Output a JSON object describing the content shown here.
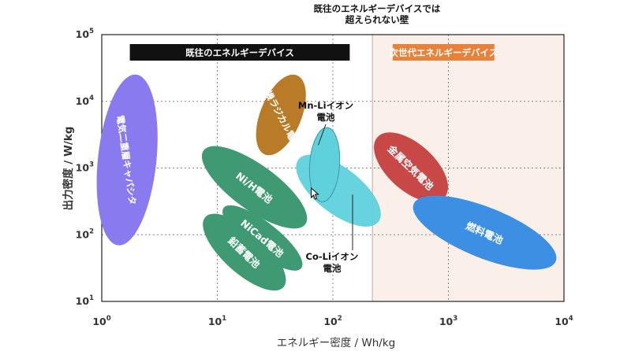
{
  "chart_data": {
    "type": "scatter",
    "title_line1": "既往のエネルギーデバイスでは",
    "title_line2": "超えられない壁",
    "xlabel": "エネルギー密度 / Wh/kg",
    "ylabel": "出力密度 / W/kg",
    "xscale": "log",
    "yscale": "log",
    "xlim": [
      1,
      10000
    ],
    "ylim": [
      10,
      100000
    ],
    "x_ticks": [
      {
        "base": "10",
        "exp": "0"
      },
      {
        "base": "10",
        "exp": "1"
      },
      {
        "base": "10",
        "exp": "2"
      },
      {
        "base": "10",
        "exp": "3"
      },
      {
        "base": "10",
        "exp": "4"
      }
    ],
    "y_ticks": [
      {
        "base": "10",
        "exp": "1"
      },
      {
        "base": "10",
        "exp": "2"
      },
      {
        "base": "10",
        "exp": "3"
      },
      {
        "base": "10",
        "exp": "4"
      },
      {
        "base": "10",
        "exp": "5"
      }
    ],
    "grid": true,
    "regions": [
      {
        "label": "既往のエネルギーデバイス",
        "x_from": 1,
        "x_to": 220,
        "color": "#111111",
        "text_color": "#ffffff",
        "shaded": false
      },
      {
        "label": "次世代エネルギーデバイス",
        "x_from": 220,
        "x_to": 10000,
        "color": "#e8823a",
        "text_color": "#ffffff",
        "shaded": true,
        "shade_color": "#fbefe9"
      }
    ],
    "series": [
      {
        "name": "電気二重層キャパシタ",
        "x_range": [
          1.1,
          2.5
        ],
        "y_range": [
          70,
          25000
        ],
        "color": "#8a7af0",
        "text_color": "#ffffff",
        "vertical_text": true
      },
      {
        "name": "有機ラジカル電池",
        "x_range": [
          23,
          55
        ],
        "y_range": [
          1700,
          23000
        ],
        "color": "#b97b27",
        "text_color": "#ffffff",
        "vertical_text": true
      },
      {
        "name": "Ni/H電池",
        "x_range": [
          8,
          55
        ],
        "y_range": [
          120,
          2200
        ],
        "color": "#3f9a74",
        "text_color": "#ffffff",
        "vertical_text": false
      },
      {
        "name": "NiCad電池",
        "x_range": [
          11,
          55
        ],
        "y_range": [
          32,
          250
        ],
        "color": "#3f9a74",
        "text_color": "#ffffff",
        "vertical_text": false
      },
      {
        "name": "鉛蓄電池",
        "x_range": [
          7,
          42
        ],
        "y_range": [
          20,
          150
        ],
        "color": "#3f9a74",
        "text_color": "#ffffff",
        "vertical_text": false
      },
      {
        "name": "Mn-Liイオン電池",
        "label_line1": "Mn-Liイオン",
        "label_line2": "電池",
        "x_range": [
          60,
          120
        ],
        "y_range": [
          350,
          3600
        ],
        "color": "#5ed1dc",
        "text_color": "#111111",
        "vertical_text": false
      },
      {
        "name": "Co-Liイオン電池",
        "label_line1": "Co-Liイオン",
        "label_line2": "電池",
        "x_range": [
          50,
          250
        ],
        "y_range": [
          150,
          1400
        ],
        "color": "#5ed1dc",
        "text_color": "#111111",
        "vertical_text": false
      },
      {
        "name": "金属空気電池",
        "x_range": [
          250,
          900
        ],
        "y_range": [
          330,
          3200
        ],
        "color": "#c84848",
        "text_color": "#ffffff",
        "vertical_text": false
      },
      {
        "name": "燃料電池",
        "x_range": [
          500,
          8500
        ],
        "y_range": [
          35,
          330
        ],
        "color": "#3d8fe4",
        "text_color": "#ffffff",
        "vertical_text": false
      }
    ]
  }
}
